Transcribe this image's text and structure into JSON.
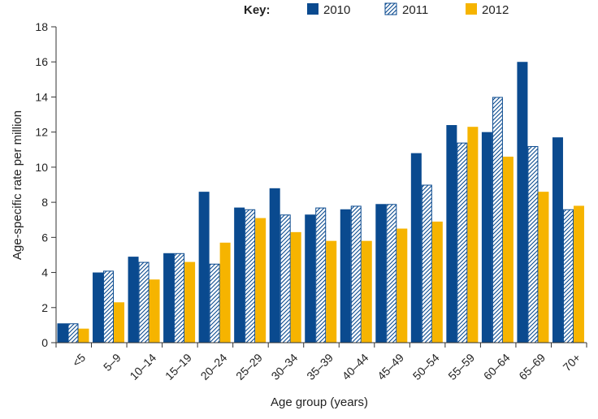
{
  "chart_data": {
    "type": "bar",
    "ylabel": "Age-specific rate per million",
    "xlabel": "Age group (years)",
    "ylim": [
      0,
      18
    ],
    "yticks": [
      0,
      2,
      4,
      6,
      8,
      10,
      12,
      14,
      16,
      18
    ],
    "grid": false,
    "legend": {
      "title": "Key:",
      "placement": "top",
      "items": [
        "2010",
        "2011",
        "2012"
      ]
    },
    "categories": [
      "<5",
      "5–9",
      "10–14",
      "15–19",
      "20–24",
      "25–29",
      "30–34",
      "35–39",
      "40–44",
      "45–49",
      "50–54",
      "55–59",
      "60–64",
      "65–69",
      "70+"
    ],
    "series": [
      {
        "name": "2010",
        "color": "#0a4a8f",
        "pattern": "solid",
        "values": [
          1.1,
          4.0,
          4.9,
          5.1,
          8.6,
          7.7,
          8.8,
          7.3,
          7.6,
          7.9,
          10.8,
          12.4,
          12.0,
          16.0,
          11.7
        ]
      },
      {
        "name": "2011",
        "color": "#0a4a8f",
        "pattern": "hatched",
        "values": [
          1.1,
          4.1,
          4.6,
          5.1,
          4.5,
          7.6,
          7.3,
          7.7,
          7.8,
          7.9,
          9.0,
          11.4,
          14.0,
          11.2,
          7.6
        ]
      },
      {
        "name": "2012",
        "color": "#f6b400",
        "pattern": "solid",
        "values": [
          0.8,
          2.3,
          3.6,
          4.6,
          5.7,
          7.1,
          6.3,
          5.8,
          5.8,
          6.5,
          6.9,
          12.3,
          10.6,
          8.6,
          7.8
        ]
      }
    ]
  }
}
